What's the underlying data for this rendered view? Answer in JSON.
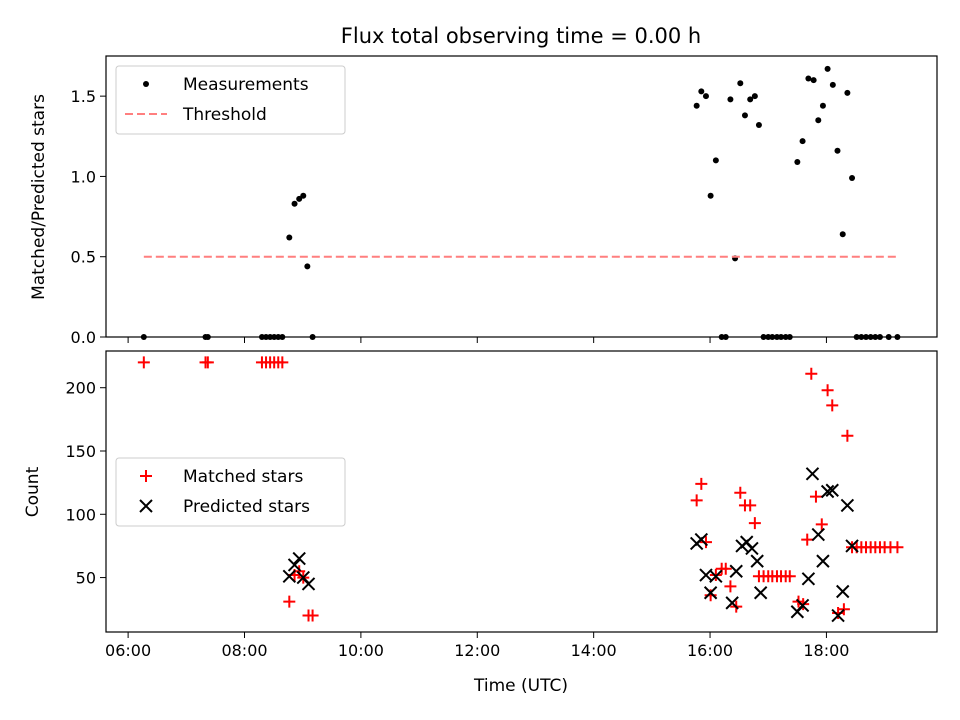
{
  "chart_data": {
    "type": "scatter",
    "x_tick_labels": [
      "06:00",
      "08:00",
      "10:00",
      "12:00",
      "14:00",
      "16:00",
      "18:00"
    ],
    "x_ticks": [
      6,
      8,
      10,
      12,
      14,
      16,
      18
    ],
    "xlim": [
      5.62,
      19.9
    ],
    "xlabel": "Time (UTC)",
    "panels": [
      {
        "id": "ratio",
        "title": "Flux total observing time = 0.00 h",
        "ylabel": "Matched/Predicted stars",
        "ylim": [
          0,
          1.75
        ],
        "y_ticks": [
          0.0,
          0.5,
          1.0,
          1.5
        ],
        "y_tick_labels": [
          "0.0",
          "0.5",
          "1.0",
          "1.5"
        ],
        "legend_position": "upper left",
        "series": [
          {
            "name": "Measurements",
            "marker": "dot",
            "color": "#000000",
            "points": [
              [
                6.27,
                0.0
              ],
              [
                7.33,
                0.0
              ],
              [
                7.37,
                0.0
              ],
              [
                8.3,
                0.0
              ],
              [
                8.37,
                0.0
              ],
              [
                8.44,
                0.0
              ],
              [
                8.51,
                0.0
              ],
              [
                8.58,
                0.0
              ],
              [
                8.65,
                0.0
              ],
              [
                8.77,
                0.62
              ],
              [
                8.86,
                0.83
              ],
              [
                8.94,
                0.86
              ],
              [
                9.01,
                0.88
              ],
              [
                9.08,
                0.44
              ],
              [
                9.17,
                0.0
              ],
              [
                15.77,
                1.44
              ],
              [
                15.85,
                1.53
              ],
              [
                15.93,
                1.5
              ],
              [
                16.01,
                0.88
              ],
              [
                16.1,
                1.1
              ],
              [
                16.2,
                0.0
              ],
              [
                16.27,
                0.0
              ],
              [
                16.35,
                1.48
              ],
              [
                16.43,
                0.49
              ],
              [
                16.52,
                1.58
              ],
              [
                16.6,
                1.38
              ],
              [
                16.69,
                1.48
              ],
              [
                16.77,
                1.5
              ],
              [
                16.84,
                1.32
              ],
              [
                16.92,
                0.0
              ],
              [
                17.0,
                0.0
              ],
              [
                17.07,
                0.0
              ],
              [
                17.15,
                0.0
              ],
              [
                17.22,
                0.0
              ],
              [
                17.3,
                0.0
              ],
              [
                17.37,
                0.0
              ],
              [
                17.5,
                1.09
              ],
              [
                17.59,
                1.22
              ],
              [
                17.69,
                1.61
              ],
              [
                17.78,
                1.6
              ],
              [
                17.86,
                1.35
              ],
              [
                17.94,
                1.44
              ],
              [
                18.02,
                1.67
              ],
              [
                18.11,
                1.57
              ],
              [
                18.19,
                1.16
              ],
              [
                18.28,
                0.64
              ],
              [
                18.36,
                1.52
              ],
              [
                18.44,
                0.99
              ],
              [
                18.52,
                0.0
              ],
              [
                18.6,
                0.0
              ],
              [
                18.68,
                0.0
              ],
              [
                18.76,
                0.0
              ],
              [
                18.84,
                0.0
              ],
              [
                18.92,
                0.0
              ],
              [
                19.07,
                0.0
              ],
              [
                19.22,
                0.0
              ]
            ]
          },
          {
            "name": "Threshold",
            "style": "dashed",
            "color": "#ff7f7f",
            "points": [
              [
                6.27,
                0.5
              ],
              [
                19.22,
                0.5
              ]
            ]
          }
        ]
      },
      {
        "id": "counts",
        "ylabel": "Count",
        "ylim": [
          7,
          229
        ],
        "y_ticks": [
          50,
          100,
          150,
          200
        ],
        "y_tick_labels": [
          "50",
          "100",
          "150",
          "200"
        ],
        "legend_position": "center left",
        "series": [
          {
            "name": "Matched stars",
            "marker": "plus",
            "color": "#ff0000",
            "points": [
              [
                6.27,
                220
              ],
              [
                7.33,
                220
              ],
              [
                7.37,
                220
              ],
              [
                8.3,
                220
              ],
              [
                8.37,
                220
              ],
              [
                8.44,
                220
              ],
              [
                8.51,
                220
              ],
              [
                8.58,
                220
              ],
              [
                8.65,
                220
              ],
              [
                8.77,
                31
              ],
              [
                8.86,
                52
              ],
              [
                8.94,
                55
              ],
              [
                9.01,
                50
              ],
              [
                9.1,
                20
              ],
              [
                9.17,
                20
              ],
              [
                15.77,
                111
              ],
              [
                15.85,
                124
              ],
              [
                15.93,
                78
              ],
              [
                16.01,
                36
              ],
              [
                16.1,
                52
              ],
              [
                16.2,
                57
              ],
              [
                16.27,
                57
              ],
              [
                16.35,
                43
              ],
              [
                16.45,
                27
              ],
              [
                16.52,
                117
              ],
              [
                16.6,
                107
              ],
              [
                16.69,
                107
              ],
              [
                16.77,
                93
              ],
              [
                16.84,
                51
              ],
              [
                16.92,
                51
              ],
              [
                17.0,
                51
              ],
              [
                17.07,
                51
              ],
              [
                17.15,
                51
              ],
              [
                17.22,
                51
              ],
              [
                17.3,
                51
              ],
              [
                17.37,
                51
              ],
              [
                17.52,
                31
              ],
              [
                17.6,
                29
              ],
              [
                17.67,
                80
              ],
              [
                17.74,
                211
              ],
              [
                17.82,
                114
              ],
              [
                17.92,
                92
              ],
              [
                18.02,
                198
              ],
              [
                18.1,
                186
              ],
              [
                18.2,
                22
              ],
              [
                18.3,
                25
              ],
              [
                18.36,
                162
              ],
              [
                18.44,
                74
              ],
              [
                18.52,
                74
              ],
              [
                18.6,
                74
              ],
              [
                18.68,
                74
              ],
              [
                18.76,
                74
              ],
              [
                18.84,
                74
              ],
              [
                18.92,
                74
              ],
              [
                19.0,
                74
              ],
              [
                19.1,
                74
              ],
              [
                19.22,
                74
              ]
            ]
          },
          {
            "name": "Predicted stars",
            "marker": "x",
            "color": "#000000",
            "points": [
              [
                8.77,
                51
              ],
              [
                8.86,
                60
              ],
              [
                8.94,
                65
              ],
              [
                9.01,
                50
              ],
              [
                9.1,
                45
              ],
              [
                15.77,
                77
              ],
              [
                15.85,
                80
              ],
              [
                15.93,
                52
              ],
              [
                16.01,
                38
              ],
              [
                16.1,
                51
              ],
              [
                16.38,
                30
              ],
              [
                16.45,
                55
              ],
              [
                16.55,
                75
              ],
              [
                16.63,
                78
              ],
              [
                16.72,
                73
              ],
              [
                16.81,
                63
              ],
              [
                16.87,
                38
              ],
              [
                17.5,
                23
              ],
              [
                17.59,
                28
              ],
              [
                17.69,
                49
              ],
              [
                17.76,
                132
              ],
              [
                17.86,
                84
              ],
              [
                17.94,
                63
              ],
              [
                18.02,
                118
              ],
              [
                18.1,
                119
              ],
              [
                18.2,
                20
              ],
              [
                18.28,
                39
              ],
              [
                18.36,
                107
              ],
              [
                18.44,
                75
              ]
            ]
          }
        ]
      }
    ]
  }
}
